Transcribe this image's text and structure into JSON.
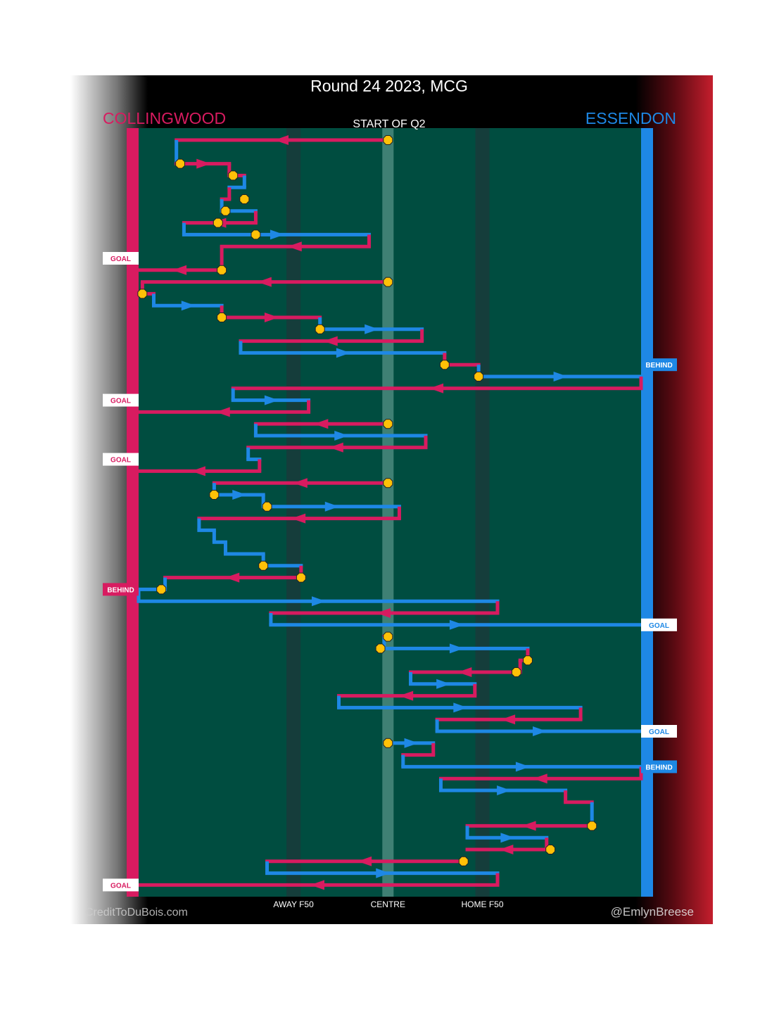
{
  "chart_data": {
    "type": "line",
    "title": "Round 24 2023, MCG",
    "subtitle": "START OF Q2",
    "teams": {
      "left": {
        "name": "COLLINGWOOD",
        "color": "#d81b60"
      },
      "right": {
        "name": "ESSENDON",
        "color": "#1e88e5"
      }
    },
    "colors": {
      "field": "#004d40",
      "left_team": "#d81b60",
      "right_team": "#1e88e5",
      "stoppage": "#ffc107",
      "band": "#1a3a3a",
      "centre_band": "#4a8a7e"
    },
    "x_ticks": [
      "AWAY F50",
      "CENTRE",
      "HOME F50"
    ],
    "x_tick_values": [
      -25,
      0,
      25
    ],
    "xlim": [
      -66,
      67
    ],
    "ylim": [
      0,
      65
    ],
    "credits": {
      "left": "CreditToDuBois.com",
      "right": "@EmlynBreese"
    },
    "result_labels": [
      {
        "text": "GOAL",
        "side": "left",
        "y": 11
      },
      {
        "text": "BEHIND",
        "side": "right",
        "y": 20
      },
      {
        "text": "GOAL",
        "side": "left",
        "y": 23
      },
      {
        "text": "GOAL",
        "side": "left",
        "y": 28
      },
      {
        "text": "BEHIND",
        "side": "left",
        "y": 39
      },
      {
        "text": "GOAL",
        "side": "right",
        "y": 42
      },
      {
        "text": "GOAL",
        "side": "right",
        "y": 51
      },
      {
        "text": "BEHIND",
        "side": "right",
        "y": 54
      },
      {
        "text": "GOAL",
        "side": "left",
        "y": 64
      }
    ],
    "stoppages": [
      {
        "x": 0,
        "y": 1
      },
      {
        "x": -55,
        "y": 3
      },
      {
        "x": -41,
        "y": 4
      },
      {
        "x": -38,
        "y": 6
      },
      {
        "x": -43,
        "y": 7
      },
      {
        "x": -45,
        "y": 8
      },
      {
        "x": -35,
        "y": 9
      },
      {
        "x": -44,
        "y": 12
      },
      {
        "x": 0,
        "y": 13
      },
      {
        "x": -65,
        "y": 14
      },
      {
        "x": -44,
        "y": 16
      },
      {
        "x": -18,
        "y": 17
      },
      {
        "x": 15,
        "y": 20
      },
      {
        "x": 24,
        "y": 21
      },
      {
        "x": 0,
        "y": 25
      },
      {
        "x": 0,
        "y": 30
      },
      {
        "x": -46,
        "y": 31
      },
      {
        "x": -32,
        "y": 32
      },
      {
        "x": -33,
        "y": 37
      },
      {
        "x": -23,
        "y": 38
      },
      {
        "x": -60,
        "y": 39
      },
      {
        "x": 0,
        "y": 43
      },
      {
        "x": -2,
        "y": 44
      },
      {
        "x": 37,
        "y": 45
      },
      {
        "x": 34,
        "y": 46
      },
      {
        "x": 0,
        "y": 52
      },
      {
        "x": 54,
        "y": 59
      },
      {
        "x": 43,
        "y": 61
      },
      {
        "x": 20,
        "y": 62
      }
    ],
    "segments": [
      {
        "team": "left",
        "x1": 0,
        "x2": -56,
        "y": 1
      },
      {
        "team": "right",
        "x1": -56,
        "x2": -56,
        "y1": 1,
        "y2": 3
      },
      {
        "team": "left",
        "x1": -56,
        "x2": -42,
        "y": 3
      },
      {
        "team": "left",
        "x1": -42,
        "x2": -38,
        "y": 4
      },
      {
        "team": "right",
        "x1": -38,
        "x2": -38,
        "y1": 4,
        "y2": 5
      },
      {
        "team": "right",
        "x1": -38,
        "x2": -42,
        "y": 5
      },
      {
        "team": "left",
        "x1": -42,
        "x2": -44,
        "y": 6
      },
      {
        "team": "right",
        "x1": -44,
        "x2": -35,
        "y": 7
      },
      {
        "team": "left",
        "x1": -35,
        "x2": -54,
        "y": 8
      },
      {
        "team": "right",
        "x1": -54,
        "x2": -5,
        "y": 9
      },
      {
        "team": "left",
        "x1": -5,
        "x2": -44,
        "y": 10
      },
      {
        "team": "left",
        "x1": -44,
        "x2": -66,
        "y": 12
      },
      {
        "team": "left",
        "x1": 0,
        "x2": -65,
        "y": 13
      },
      {
        "team": "left",
        "x1": -65,
        "x2": -62,
        "y": 14
      },
      {
        "team": "right",
        "x1": -62,
        "x2": -44,
        "y": 15
      },
      {
        "team": "left",
        "x1": -44,
        "x2": -18,
        "y": 16
      },
      {
        "team": "right",
        "x1": -18,
        "x2": 9,
        "y": 17
      },
      {
        "team": "left",
        "x1": 9,
        "x2": -39,
        "y": 18
      },
      {
        "team": "right",
        "x1": -39,
        "x2": 15,
        "y": 19
      },
      {
        "team": "left",
        "x1": 15,
        "x2": 24,
        "y": 20
      },
      {
        "team": "right",
        "x1": 24,
        "x2": 67,
        "y": 21
      },
      {
        "team": "left",
        "x1": 67,
        "x2": -41,
        "y": 22
      },
      {
        "team": "right",
        "x1": -41,
        "x2": -21,
        "y": 23
      },
      {
        "team": "left",
        "x1": -21,
        "x2": -66,
        "y": 24
      },
      {
        "team": "left",
        "x1": 0,
        "x2": -35,
        "y": 25
      },
      {
        "team": "right",
        "x1": -35,
        "x2": 10,
        "y": 26
      },
      {
        "team": "left",
        "x1": 10,
        "x2": -37,
        "y": 27
      },
      {
        "team": "right",
        "x1": -37,
        "x2": -34,
        "y": 28
      },
      {
        "team": "left",
        "x1": -34,
        "x2": -66,
        "y": 29
      },
      {
        "team": "left",
        "x1": 0,
        "x2": -46,
        "y": 30
      },
      {
        "team": "right",
        "x1": -46,
        "x2": -33,
        "y": 31
      },
      {
        "team": "right",
        "x1": -33,
        "x2": 3,
        "y": 32
      },
      {
        "team": "left",
        "x1": 3,
        "x2": -50,
        "y": 33
      },
      {
        "team": "right",
        "x1": -50,
        "x2": -46,
        "y": 34
      },
      {
        "team": "right",
        "x1": -46,
        "x2": -43,
        "y": 35
      },
      {
        "team": "right",
        "x1": -43,
        "x2": -33,
        "y": 36
      },
      {
        "team": "right",
        "x1": -33,
        "x2": -23,
        "y": 37
      },
      {
        "team": "left",
        "x1": -23,
        "x2": -59,
        "y": 38
      },
      {
        "team": "right",
        "x1": -59,
        "x2": -66,
        "y": 39
      },
      {
        "team": "right",
        "x1": -66,
        "x2": 29,
        "y": 40
      },
      {
        "team": "left",
        "x1": 29,
        "x2": -31,
        "y": 41
      },
      {
        "team": "right",
        "x1": -31,
        "x2": 67,
        "y": 42
      },
      {
        "team": "left",
        "x1": 0,
        "x2": -1,
        "y": 43
      },
      {
        "team": "right",
        "x1": -1,
        "x2": 37,
        "y": 44
      },
      {
        "team": "left",
        "x1": 37,
        "x2": 35,
        "y": 45
      },
      {
        "team": "left",
        "x1": 35,
        "x2": 6,
        "y": 46
      },
      {
        "team": "right",
        "x1": 6,
        "x2": 23,
        "y": 47
      },
      {
        "team": "left",
        "x1": 23,
        "x2": -13,
        "y": 48
      },
      {
        "team": "right",
        "x1": -13,
        "x2": 51,
        "y": 49
      },
      {
        "team": "left",
        "x1": 51,
        "x2": 13,
        "y": 50
      },
      {
        "team": "right",
        "x1": 13,
        "x2": 67,
        "y": 51
      },
      {
        "team": "right",
        "x1": 0,
        "x2": 12,
        "y": 52
      },
      {
        "team": "left",
        "x1": 12,
        "x2": 4,
        "y": 53
      },
      {
        "team": "right",
        "x1": 4,
        "x2": 67,
        "y": 54
      },
      {
        "team": "left",
        "x1": 67,
        "x2": 14,
        "y": 55
      },
      {
        "team": "right",
        "x1": 14,
        "x2": 47,
        "y": 56
      },
      {
        "team": "left",
        "x1": 47,
        "x2": 54,
        "y": 57
      },
      {
        "team": "right",
        "x1": 54,
        "x2": 54,
        "y1": 57,
        "y2": 59
      },
      {
        "team": "left",
        "x1": 54,
        "x2": 21,
        "y": 59
      },
      {
        "team": "right",
        "x1": 21,
        "x2": 42,
        "y": 60
      },
      {
        "team": "left",
        "x1": 42,
        "x2": 21,
        "y": 61
      },
      {
        "team": "left",
        "x1": 20,
        "x2": -32,
        "y": 62
      },
      {
        "team": "right",
        "x1": -32,
        "x2": 29,
        "y": 63
      },
      {
        "team": "left",
        "x1": 29,
        "x2": -66,
        "y": 64
      }
    ]
  }
}
